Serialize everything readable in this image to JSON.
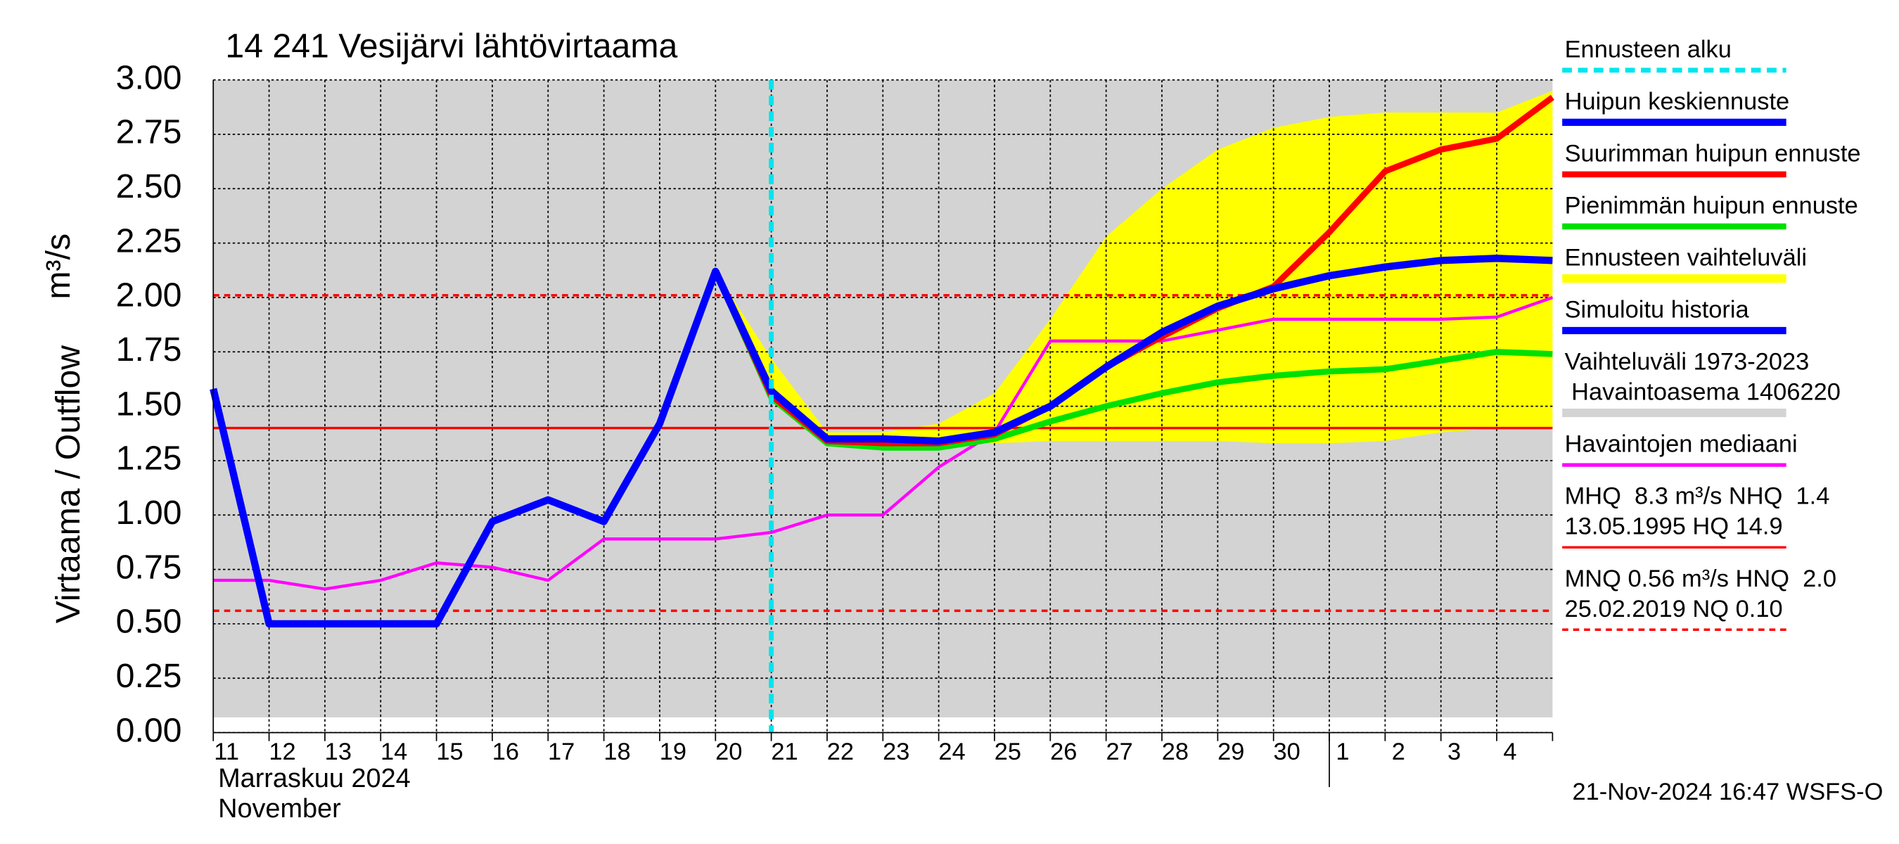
{
  "chart_data": {
    "type": "line",
    "title": "14 241 Vesijärvi lähtövirtaama",
    "ylabel": "Virtaama / Outflow",
    "yunit": "m³/s",
    "xlabel": [
      "Marraskuu 2024",
      "November"
    ],
    "footer": "21-Nov-2024 16:47 WSFS-O",
    "categories": [
      "11",
      "12",
      "13",
      "14",
      "15",
      "16",
      "17",
      "18",
      "19",
      "20",
      "21",
      "22",
      "23",
      "24",
      "25",
      "26",
      "27",
      "28",
      "29",
      "30",
      "1",
      "2",
      "3",
      "4",
      null
    ],
    "ylim": [
      0,
      3
    ],
    "yticks": [
      {
        "value": 0,
        "label": "0.00"
      },
      {
        "value": 0.25,
        "label": "0.25"
      },
      {
        "value": 0.5,
        "label": "0.50"
      },
      {
        "value": 0.75,
        "label": "0.75"
      },
      {
        "value": 1,
        "label": "1.00"
      },
      {
        "value": 1.25,
        "label": "1.25"
      },
      {
        "value": 1.5,
        "label": "1.50"
      },
      {
        "value": 1.75,
        "label": "1.75"
      },
      {
        "value": 2,
        "label": "2.00"
      },
      {
        "value": 2.25,
        "label": "2.25"
      },
      {
        "value": 2.5,
        "label": "2.50"
      },
      {
        "value": 2.75,
        "label": "2.75"
      },
      {
        "value": 3,
        "label": "3.00"
      }
    ],
    "grid": true,
    "series": [
      {
        "name": "Ennusteen alku",
        "kind": "vline",
        "x": "21",
        "color": "#00e5ee"
      },
      {
        "name": "Huipun keskiennuste",
        "kind": "line",
        "color": "#0000ff",
        "width": 6,
        "values": [
          null,
          null,
          null,
          null,
          null,
          null,
          null,
          null,
          null,
          2.12,
          1.57,
          1.35,
          1.35,
          1.34,
          1.38,
          1.5,
          1.68,
          1.84,
          1.96,
          2.04,
          2.1,
          2.14,
          2.17,
          2.18,
          2.17
        ]
      },
      {
        "name": "Suurimman huipun ennuste",
        "kind": "line",
        "color": "#ff0000",
        "width": 5,
        "values": [
          null,
          null,
          null,
          null,
          null,
          null,
          null,
          null,
          null,
          2.12,
          1.55,
          1.34,
          1.33,
          1.33,
          1.37,
          1.5,
          1.68,
          1.82,
          1.95,
          2.05,
          2.3,
          2.58,
          2.68,
          2.73,
          2.92
        ]
      },
      {
        "name": "Pienimmän huipun ennuste",
        "kind": "line",
        "color": "#00e000",
        "width": 5,
        "values": [
          null,
          null,
          null,
          null,
          null,
          null,
          null,
          null,
          null,
          2.12,
          1.54,
          1.33,
          1.31,
          1.31,
          1.35,
          1.43,
          1.5,
          1.56,
          1.61,
          1.64,
          1.66,
          1.67,
          1.71,
          1.75,
          1.74
        ]
      },
      {
        "name": "Ennusteen vaihteluväli",
        "kind": "band",
        "color": "#ffff00",
        "lower": [
          null,
          null,
          null,
          null,
          null,
          null,
          null,
          null,
          null,
          2.12,
          1.55,
          1.34,
          1.33,
          1.33,
          1.33,
          1.34,
          1.34,
          1.34,
          1.34,
          1.33,
          1.33,
          1.34,
          1.38,
          1.4,
          1.4
        ],
        "upper": [
          null,
          null,
          null,
          null,
          null,
          null,
          null,
          null,
          null,
          2.12,
          1.72,
          1.38,
          1.38,
          1.42,
          1.56,
          1.9,
          2.28,
          2.5,
          2.68,
          2.78,
          2.83,
          2.85,
          2.85,
          2.85,
          2.95
        ]
      },
      {
        "name": "Simuloitu historia",
        "kind": "line",
        "color": "#0000ff",
        "width": 6,
        "values": [
          1.58,
          0.5,
          0.5,
          0.5,
          0.5,
          0.97,
          1.07,
          0.97,
          1.42,
          2.12,
          1.57,
          null,
          null,
          null,
          null,
          null,
          null,
          null,
          null,
          null,
          null,
          null,
          null,
          null,
          null
        ]
      },
      {
        "name": [
          "Vaihteluväli 1973-2023",
          " Havaintoasema 1406220"
        ],
        "kind": "band",
        "color": "#d3d3d3",
        "lower": [
          0.07,
          0.07,
          0.07,
          0.07,
          0.07,
          0.07,
          0.07,
          0.07,
          0.07,
          0.07,
          0.07,
          0.07,
          0.07,
          0.07,
          0.07,
          0.07,
          0.07,
          0.07,
          0.07,
          0.07,
          0.07,
          0.07,
          0.07,
          0.07,
          0.07
        ],
        "upper": [
          3,
          3,
          3,
          3,
          3,
          3,
          3,
          3,
          3,
          3,
          3,
          3,
          3,
          3,
          3,
          3,
          3,
          3,
          3,
          3,
          3,
          3,
          3,
          3,
          3
        ]
      },
      {
        "name": "Havaintojen mediaani",
        "kind": "line",
        "color": "#ff00ff",
        "width": 2.5,
        "values": [
          0.7,
          0.7,
          0.66,
          0.7,
          0.78,
          0.76,
          0.7,
          0.89,
          0.89,
          0.89,
          0.92,
          1,
          1,
          1.22,
          1.38,
          1.8,
          1.8,
          1.8,
          1.85,
          1.9,
          1.9,
          1.9,
          1.9,
          1.91,
          2
        ]
      },
      {
        "name": [
          "MHQ  8.3 m³/s NHQ  1.4",
          "13.05.1995 HQ 14.9"
        ],
        "kind": "hline",
        "value": 1.4,
        "color": "#ff0000",
        "dashed": false
      },
      {
        "name": [
          "MNQ 0.56 m³/s HNQ  2.0",
          "25.02.2019 NQ 0.10"
        ],
        "kind": "hline",
        "value": 0.56,
        "color": "#ff0000",
        "dashed": true
      }
    ],
    "hlines": [
      {
        "value": 2.01,
        "color": "#ff0000",
        "dashed": true
      }
    ]
  }
}
